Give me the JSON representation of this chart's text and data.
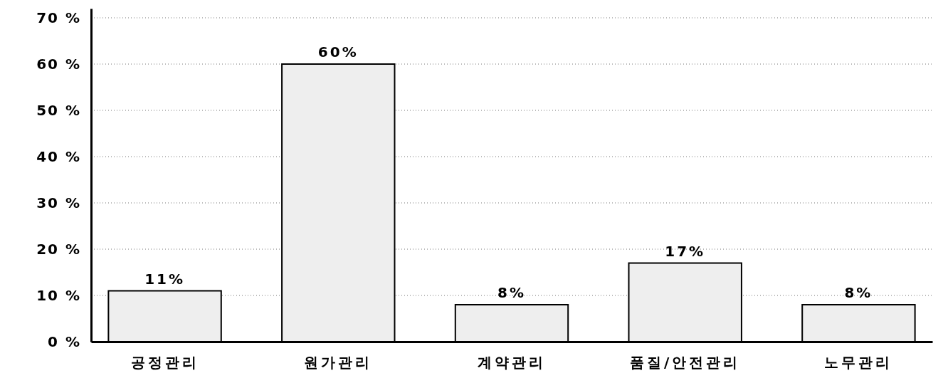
{
  "chart_data": {
    "type": "bar",
    "categories": [
      "공정관리",
      "원가관리",
      "계약관리",
      "품질/안전관리",
      "노무관리"
    ],
    "values": [
      11,
      60,
      8,
      17,
      8
    ],
    "color": "#eeeeee",
    "value_labels": [
      "11%",
      "60%",
      "8%",
      "17%",
      "8%"
    ],
    "ylim": [
      0,
      72
    ],
    "yticks": [
      {
        "value": 0,
        "label": "0 %"
      },
      {
        "value": 10,
        "label": "10 %"
      },
      {
        "value": 20,
        "label": "20 %"
      },
      {
        "value": 30,
        "label": "30 %"
      },
      {
        "value": 40,
        "label": "40 %"
      },
      {
        "value": 50,
        "label": "50 %"
      },
      {
        "value": 60,
        "label": "60 %"
      },
      {
        "value": 70,
        "label": "70 %"
      }
    ],
    "grid": "y"
  }
}
